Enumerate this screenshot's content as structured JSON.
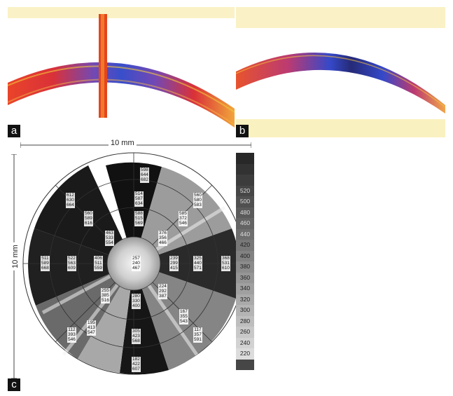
{
  "panels": {
    "a": {
      "label": "a"
    },
    "b": {
      "label": "b"
    },
    "c": {
      "label": "c"
    }
  },
  "map": {
    "width_label": "10 mm",
    "height_label": "10 mm",
    "scale_values": [
      "",
      "",
      "",
      "520",
      "500",
      "480",
      "460",
      "440",
      "420",
      "400",
      "380",
      "360",
      "340",
      "320",
      "300",
      "280",
      "260",
      "240",
      "220",
      ""
    ],
    "sectors": [
      {
        "values": [
          "598",
          "644",
          "682"
        ]
      },
      {
        "values": [
          "612",
          "630",
          "664"
        ]
      },
      {
        "values": [
          "514",
          "587",
          "634"
        ]
      },
      {
        "values": [
          "560",
          "580",
          "583"
        ]
      },
      {
        "values": [
          "560",
          "589",
          "616"
        ]
      },
      {
        "values": [
          "588",
          "515",
          "569"
        ]
      },
      {
        "values": [
          "463",
          "533",
          "554"
        ]
      },
      {
        "values": [
          "585",
          "372",
          "546"
        ]
      },
      {
        "values": [
          "376",
          "356",
          "466"
        ]
      },
      {
        "values": [
          "511",
          "589",
          "668"
        ]
      },
      {
        "values": [
          "522",
          "563",
          "609"
        ]
      },
      {
        "values": [
          "406",
          "511",
          "559"
        ]
      },
      {
        "values": [
          "257",
          "240",
          "467"
        ]
      },
      {
        "values": [
          "239",
          "299",
          "415"
        ]
      },
      {
        "values": [
          "325",
          "440",
          "571"
        ]
      },
      {
        "values": [
          "368",
          "531",
          "610"
        ]
      },
      {
        "values": [
          "255",
          "385",
          "516"
        ]
      },
      {
        "values": [
          "224",
          "292",
          "387"
        ]
      },
      {
        "values": [
          "280",
          "330",
          "400"
        ]
      },
      {
        "values": [
          "195",
          "413",
          "547"
        ]
      },
      {
        "values": [
          "167",
          "355",
          "543"
        ]
      },
      {
        "values": [
          "112",
          "393",
          "546"
        ]
      },
      {
        "values": [
          "305",
          "423",
          "568"
        ]
      },
      {
        "values": [
          "117",
          "357",
          "591"
        ]
      },
      {
        "values": [
          "182",
          "422",
          "607"
        ]
      }
    ]
  }
}
